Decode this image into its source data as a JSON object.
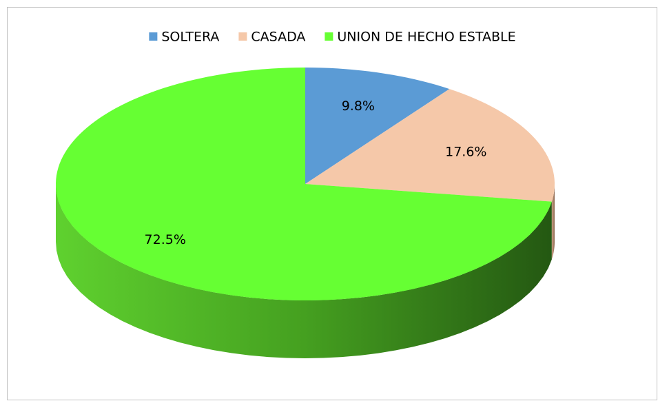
{
  "chart_data": {
    "type": "pie3d",
    "categories": [
      "SOLTERA",
      "CASADA",
      "UNION DE HECHO ESTABLE"
    ],
    "values": [
      9.8,
      17.6,
      72.5
    ],
    "value_labels": [
      "9.8%",
      "17.6%",
      "72.5%"
    ],
    "colors": [
      "#5b9bd5",
      "#f5c8a9",
      "#66ff33"
    ],
    "legend": "top"
  }
}
